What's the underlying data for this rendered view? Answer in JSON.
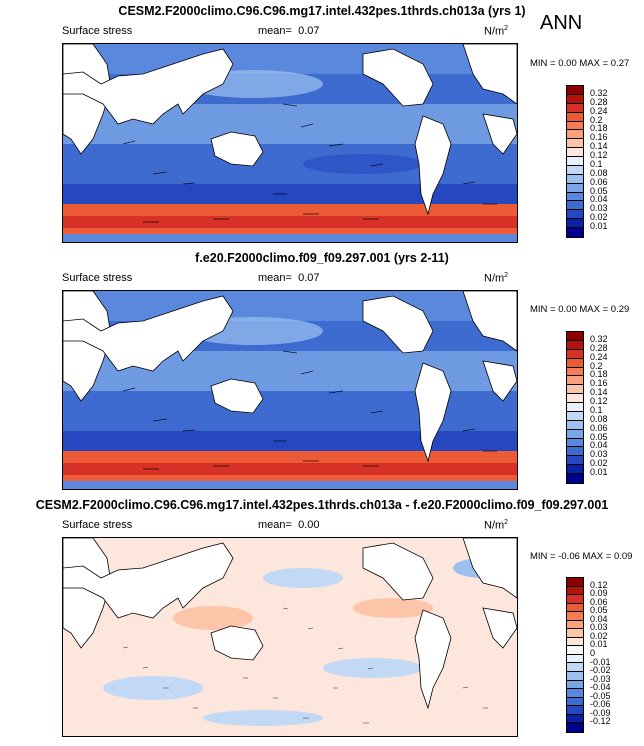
{
  "ann_label": "ANN",
  "panels": [
    {
      "title": "CESM2.F2000climo.C96.C96.mg17.intel.432pes.1thrds.ch013a (yrs 1)",
      "variable": "Surface stress",
      "mean_label": "mean=",
      "mean_value": "0.07",
      "units": "N/m",
      "units_sup": "2",
      "minmax": "MIN =  0.00 MAX =  0.27",
      "levels": [
        "0.32",
        "0.28",
        "0.24",
        "0.2",
        "0.18",
        "0.16",
        "0.14",
        "0.12",
        "0.1",
        "0.08",
        "0.06",
        "0.05",
        "0.04",
        "0.03",
        "0.02",
        "0.01"
      ],
      "colors": [
        "#8b0000",
        "#b2130b",
        "#d73027",
        "#ec5a36",
        "#f47d55",
        "#f9a07c",
        "#fcc4a8",
        "#fde6dc",
        "#e8f0fb",
        "#c2d9f5",
        "#9dc1ef",
        "#7aa6e6",
        "#5a88dc",
        "#3d6bd0",
        "#2548c0",
        "#0b22a8",
        "#00008b"
      ]
    },
    {
      "title": "f.e20.F2000climo.f09_f09.297.001 (yrs 2-11)",
      "variable": "Surface stress",
      "mean_label": "mean=",
      "mean_value": "0.07",
      "units": "N/m",
      "units_sup": "2",
      "minmax": "MIN =  0.00 MAX =  0.29",
      "levels": [
        "0.32",
        "0.28",
        "0.24",
        "0.2",
        "0.18",
        "0.16",
        "0.14",
        "0.12",
        "0.1",
        "0.08",
        "0.06",
        "0.05",
        "0.04",
        "0.03",
        "0.02",
        "0.01"
      ],
      "colors": [
        "#8b0000",
        "#b2130b",
        "#d73027",
        "#ec5a36",
        "#f47d55",
        "#f9a07c",
        "#fcc4a8",
        "#fde6dc",
        "#e8f0fb",
        "#c2d9f5",
        "#9dc1ef",
        "#7aa6e6",
        "#5a88dc",
        "#3d6bd0",
        "#2548c0",
        "#0b22a8",
        "#00008b"
      ]
    },
    {
      "title": "CESM2.F2000climo.C96.C96.mg17.intel.432pes.1thrds.ch013a - f.e20.F2000climo.f09_f09.297.001",
      "variable": "Surface stress",
      "mean_label": "mean=",
      "mean_value": "0.00",
      "units": "N/m",
      "units_sup": "2",
      "minmax": "MIN = -0.06 MAX =  0.09",
      "levels": [
        "0.12",
        "0.09",
        "0.06",
        "0.05",
        "0.04",
        "0.03",
        "0.02",
        "0.01",
        "0",
        "-0.01",
        "-0.02",
        "-0.03",
        "-0.04",
        "-0.05",
        "-0.06",
        "-0.09",
        "-0.12"
      ],
      "colors": [
        "#8b0000",
        "#b2130b",
        "#d73027",
        "#ec5a36",
        "#f47d55",
        "#f9a07c",
        "#fcc4a8",
        "#fde6dc",
        "#f7f7f7",
        "#e8f0fb",
        "#c2d9f5",
        "#9dc1ef",
        "#7aa6e6",
        "#5a88dc",
        "#3d6bd0",
        "#2548c0",
        "#0b22a8",
        "#00008b"
      ]
    }
  ]
}
